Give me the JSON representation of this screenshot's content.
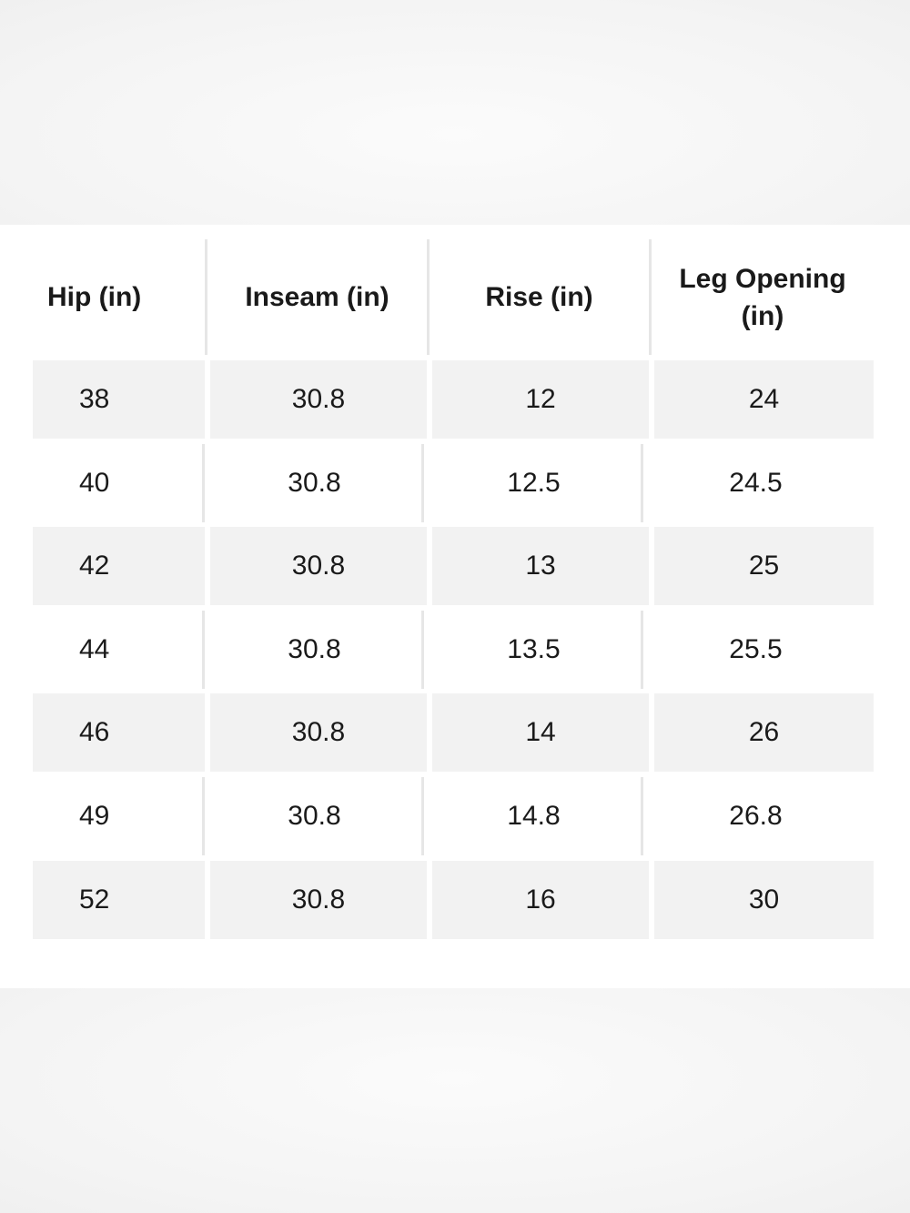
{
  "table": {
    "headers": [
      "Hip (in)",
      "Inseam (in)",
      "Rise (in)",
      "Leg Opening (in)"
    ],
    "rows": [
      [
        "38",
        "30.8",
        "12",
        "24"
      ],
      [
        "40",
        "30.8",
        "12.5",
        "24.5"
      ],
      [
        "42",
        "30.8",
        "13",
        "25"
      ],
      [
        "44",
        "30.8",
        "13.5",
        "25.5"
      ],
      [
        "46",
        "30.8",
        "14",
        "26"
      ],
      [
        "49",
        "30.8",
        "14.8",
        "26.8"
      ],
      [
        "52",
        "30.8",
        "16",
        "30"
      ]
    ]
  },
  "colors": {
    "shaded_row": "#f2f2f2",
    "divider": "#e6e6e6",
    "text": "#1a1a1a"
  }
}
